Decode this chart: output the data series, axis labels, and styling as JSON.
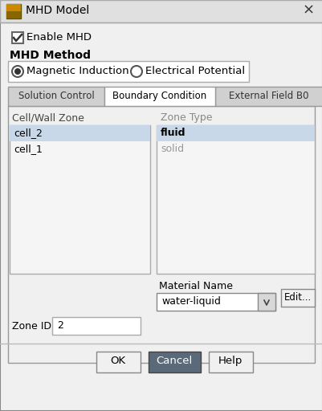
{
  "title": "MHD Model",
  "bg_color": "#f0f0f0",
  "dialog_bg": "#f0f0f0",
  "titlebar_bg": "#e8e8e8",
  "titlebar_text": "MHD Model",
  "close_symbol": "×",
  "checkbox_label": "Enable MHD",
  "section_label": "MHD Method",
  "radio1_label": "Magnetic Induction",
  "radio2_label": "Electrical Potential",
  "tab1": "Solution Control",
  "tab2": "Boundary Condition",
  "tab3": "External Field B0",
  "col1_header": "Cell/Wall Zone",
  "col2_header": "Zone Type",
  "cell_items": [
    "cell_2",
    "cell_1"
  ],
  "zone_items": [
    "fluid",
    "solid"
  ],
  "selected_row": 0,
  "selected_bg": "#c8d8e8",
  "list_bg": "#f5f5f5",
  "material_label": "Material Name",
  "material_value": "water-liquid",
  "zone_id_label": "Zone ID",
  "zone_id_value": "2",
  "btn_ok": "OK",
  "btn_cancel": "Cancel",
  "btn_help": "Help",
  "btn_edit": "Edit...",
  "active_tab_bg": "#ffffff",
  "inactive_tab_bg": "#d8d8d8",
  "tab_border": "#aaaaaa",
  "border_color": "#999999",
  "text_color": "#000000",
  "gray_text": "#888888",
  "section_color": "#1a1a8c",
  "cancel_btn_bg": "#5a6a7a",
  "cancel_btn_fg": "#ffffff",
  "ok_help_btn_bg": "#f0f0f0",
  "ok_help_btn_fg": "#000000"
}
